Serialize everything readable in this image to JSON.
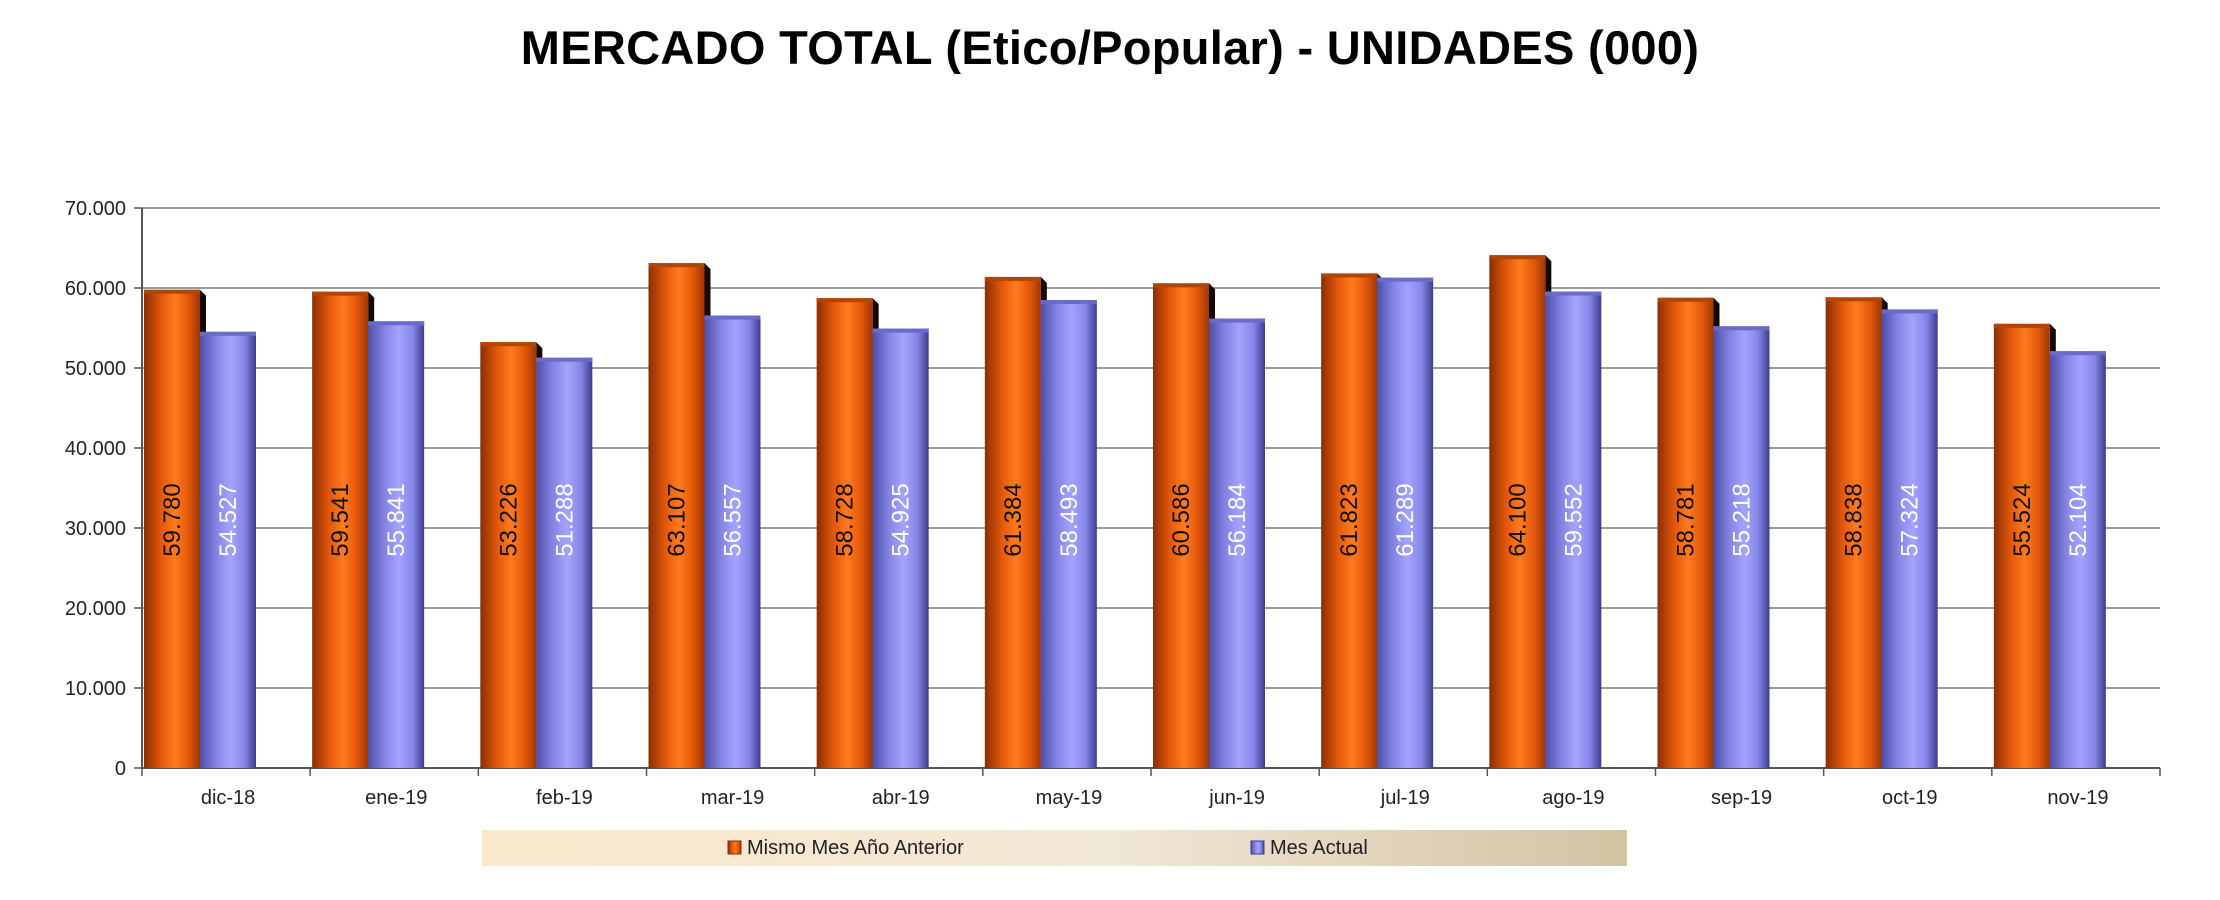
{
  "chart_data": {
    "type": "bar",
    "title": "MERCADO TOTAL (Etico/Popular) - UNIDADES (000)",
    "xlabel": "",
    "ylabel": "",
    "ylim": [
      0,
      70000
    ],
    "y_ticks": [
      0,
      10000,
      20000,
      30000,
      40000,
      50000,
      60000,
      70000
    ],
    "y_tick_labels": [
      "0",
      "10.000",
      "20.000",
      "30.000",
      "40.000",
      "50.000",
      "60.000",
      "70.000"
    ],
    "grid": true,
    "legend_position": "bottom-center",
    "categories": [
      "dic-18",
      "ene-19",
      "feb-19",
      "mar-19",
      "abr-19",
      "may-19",
      "jun-19",
      "jul-19",
      "ago-19",
      "sep-19",
      "oct-19",
      "nov-19"
    ],
    "series": [
      {
        "name": "Mismo Mes Año Anterior",
        "color": "#f56a10",
        "label_color": "#111111",
        "values": [
          59780,
          59541,
          53226,
          63107,
          58728,
          61384,
          60586,
          61823,
          64100,
          58781,
          58838,
          55524
        ],
        "labels": [
          "59.780",
          "59.541",
          "53.226",
          "63.107",
          "58.728",
          "61.384",
          "60.586",
          "61.823",
          "64.100",
          "58.781",
          "58.838",
          "55.524"
        ]
      },
      {
        "name": "Mes Actual",
        "color": "#8f8ff0",
        "label_color": "#ffffff",
        "values": [
          54527,
          55841,
          51288,
          56557,
          54925,
          58493,
          56184,
          61289,
          59552,
          55218,
          57324,
          52104
        ],
        "labels": [
          "54.527",
          "55.841",
          "51.288",
          "56.557",
          "54.925",
          "58.493",
          "56.184",
          "61.289",
          "59.552",
          "55.218",
          "57.324",
          "52.104"
        ]
      }
    ]
  }
}
